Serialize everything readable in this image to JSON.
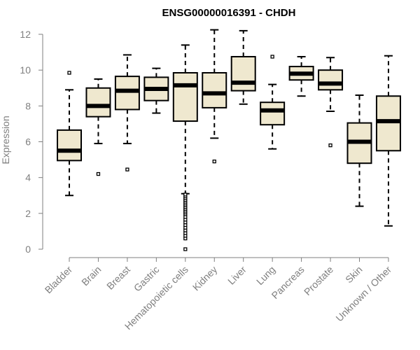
{
  "chart_data": {
    "type": "boxplot",
    "title": "ENSG00000016391 - CHDH",
    "xlabel": "",
    "ylabel": "Expression",
    "ylim": [
      0,
      12
    ],
    "yticks": [
      0,
      2,
      4,
      6,
      8,
      10,
      12
    ],
    "grid": false,
    "legend": "none",
    "colors": {
      "box_fill": "#efe8cf",
      "stroke": "#000000",
      "axis": "#7f7f7f"
    },
    "categories": [
      "Bladder",
      "Brain",
      "Breast",
      "Gastric",
      "Hematopoietic cells",
      "Kidney",
      "Liver",
      "Lung",
      "Pancreas",
      "Prostate",
      "Skin",
      "Unknown / Other"
    ],
    "boxes": [
      {
        "name": "Bladder",
        "whisker_low": 3.0,
        "q1": 4.95,
        "median": 5.5,
        "q3": 6.65,
        "whisker_high": 8.9,
        "outliers": [
          9.85
        ]
      },
      {
        "name": "Brain",
        "whisker_low": 5.9,
        "q1": 7.4,
        "median": 8.0,
        "q3": 9.0,
        "whisker_high": 9.5,
        "outliers": [
          4.2
        ]
      },
      {
        "name": "Breast",
        "whisker_low": 5.9,
        "q1": 7.8,
        "median": 8.85,
        "q3": 9.65,
        "whisker_high": 10.85,
        "outliers": [
          4.45
        ]
      },
      {
        "name": "Gastric",
        "whisker_low": 7.6,
        "q1": 8.3,
        "median": 8.95,
        "q3": 9.6,
        "whisker_high": 10.1,
        "outliers": []
      },
      {
        "name": "Hematopoietic cells",
        "whisker_low": 3.1,
        "q1": 7.15,
        "median": 9.15,
        "q3": 9.85,
        "whisker_high": 11.4,
        "outliers": [
          0.0,
          0.6,
          0.75,
          0.9,
          1.05,
          1.2,
          1.35,
          1.5,
          1.65,
          1.8,
          1.95,
          2.05,
          2.15,
          2.25,
          2.35,
          2.45,
          2.55,
          2.65,
          2.75,
          2.85,
          2.95,
          3.05
        ]
      },
      {
        "name": "Kidney",
        "whisker_low": 6.2,
        "q1": 7.9,
        "median": 8.7,
        "q3": 9.85,
        "whisker_high": 12.25,
        "outliers": [
          4.9
        ]
      },
      {
        "name": "Liver",
        "whisker_low": 8.1,
        "q1": 8.85,
        "median": 9.3,
        "q3": 10.75,
        "whisker_high": 12.2,
        "outliers": []
      },
      {
        "name": "Lung",
        "whisker_low": 5.6,
        "q1": 6.95,
        "median": 7.75,
        "q3": 8.2,
        "whisker_high": 9.2,
        "outliers": [
          10.75
        ]
      },
      {
        "name": "Pancreas",
        "whisker_low": 8.55,
        "q1": 9.45,
        "median": 9.8,
        "q3": 10.2,
        "whisker_high": 10.75,
        "outliers": []
      },
      {
        "name": "Prostate",
        "whisker_low": 7.7,
        "q1": 8.9,
        "median": 9.25,
        "q3": 10.0,
        "whisker_high": 10.7,
        "outliers": [
          5.8
        ]
      },
      {
        "name": "Skin",
        "whisker_low": 2.4,
        "q1": 4.8,
        "median": 6.0,
        "q3": 7.05,
        "whisker_high": 8.6,
        "outliers": []
      },
      {
        "name": "Unknown / Other",
        "whisker_low": 1.3,
        "q1": 5.5,
        "median": 7.15,
        "q3": 8.55,
        "whisker_high": 10.8,
        "outliers": []
      }
    ]
  }
}
